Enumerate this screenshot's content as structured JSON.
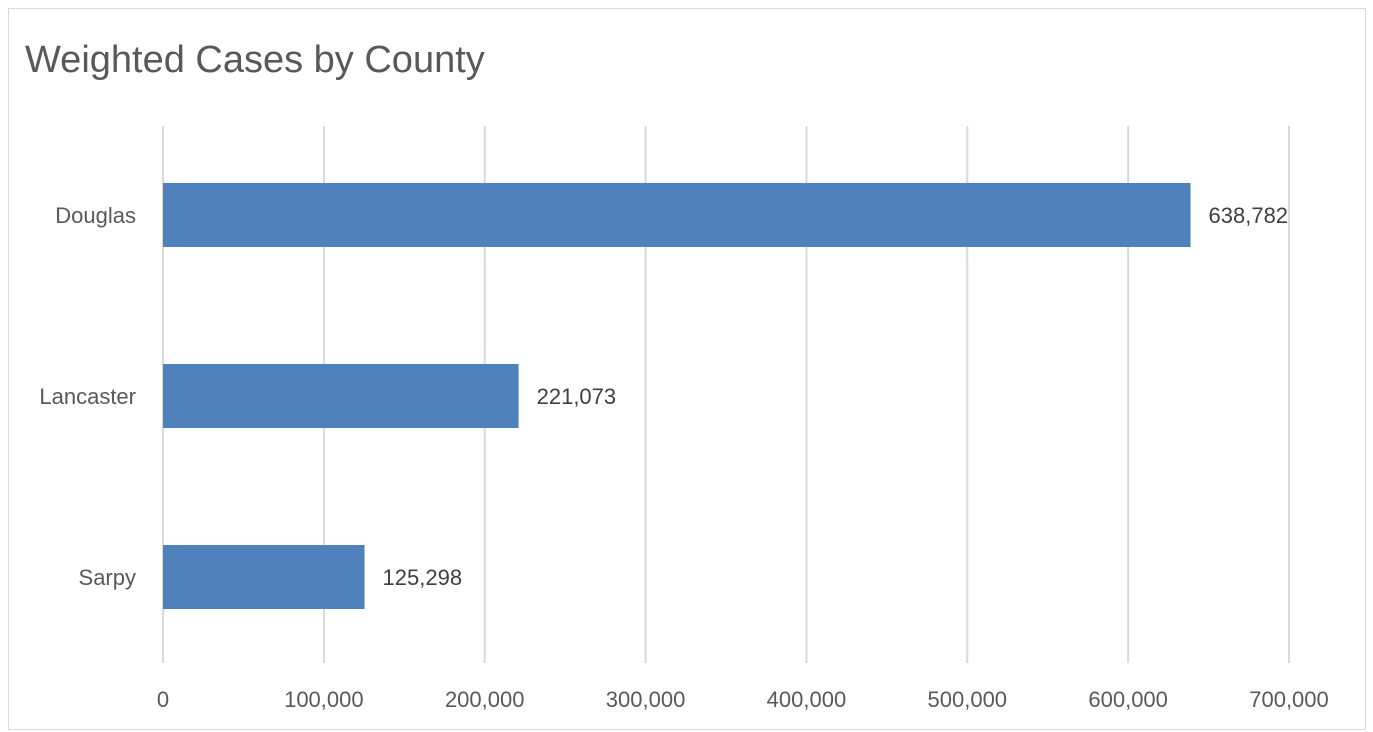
{
  "chart_data": {
    "type": "bar",
    "orientation": "horizontal",
    "title": "Weighted Cases by County",
    "categories": [
      "Douglas",
      "Lancaster",
      "Sarpy"
    ],
    "values": [
      638782,
      221073,
      125298
    ],
    "data_labels": [
      "638,782",
      "221,073",
      "125,298"
    ],
    "xlim": [
      0,
      700000
    ],
    "x_ticks": [
      0,
      100000,
      200000,
      300000,
      400000,
      500000,
      600000,
      700000
    ],
    "x_tick_labels": [
      "0",
      "100,000",
      "200,000",
      "300,000",
      "400,000",
      "500,000",
      "600,000",
      "700,000"
    ],
    "grid": true,
    "legend": "none",
    "bar_color": "#4f81bd"
  }
}
